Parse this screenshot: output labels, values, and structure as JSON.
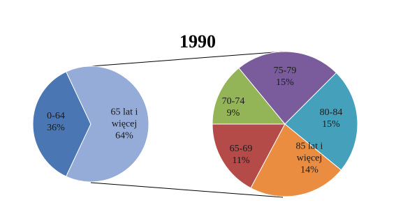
{
  "chart_data": [
    {
      "type": "pie",
      "title": "1990",
      "categories": [
        "0-64",
        "65 lat i więcej"
      ],
      "values": [
        36,
        64
      ],
      "value_labels": [
        "36%",
        "64%"
      ],
      "colors": [
        "#4a76b3",
        "#95abd8"
      ]
    },
    {
      "type": "pie",
      "categories": [
        "65-69",
        "70-74",
        "75-79",
        "80-84",
        "85 lat i więcej"
      ],
      "values": [
        11,
        9,
        15,
        15,
        14
      ],
      "value_labels": [
        "11%",
        "9%",
        "15%",
        "15%",
        "14%"
      ],
      "colors": [
        "#b54b48",
        "#93b457",
        "#7a5b9c",
        "#45a1bb",
        "#ea8d41"
      ]
    }
  ]
}
